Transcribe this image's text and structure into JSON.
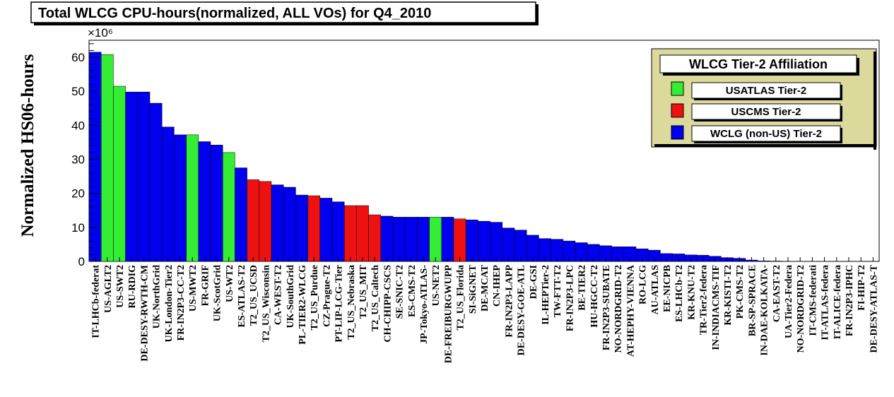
{
  "colors": {
    "usatlas": "#33ee33",
    "uscms": "#ee1111",
    "wlcg": "#0000ee",
    "legend_bg": "#dcd99d"
  },
  "chart_data": {
    "type": "bar",
    "title": "Total WLCG CPU-hours(normalized, ALL VOs) for Q4_2010",
    "ylabel": "Normalized HS06-hours",
    "xlabel": "",
    "y_multiplier": "×10⁶",
    "ylim": [
      0,
      65
    ],
    "yticks": [
      0,
      10,
      20,
      30,
      40,
      50,
      60
    ],
    "grid": false,
    "legend_placement": "top-right",
    "legend": {
      "title": "WLCG Tier-2 Affiliation",
      "entries": [
        {
          "group": "usatlas",
          "label": "USATLAS Tier-2"
        },
        {
          "group": "uscms",
          "label": "USCMS Tier-2"
        },
        {
          "group": "wlcg",
          "label": "WCLG (non-US) Tier-2"
        }
      ]
    },
    "categories": [
      "IT-LHCb-federat",
      "US-AGLT2",
      "US-SWT2",
      "RU-RDIG",
      "DE-DESY-RWTH-CM",
      "UK-NorthGrid",
      "UK-London-Tier2",
      "FR-IN2P3-CC-T2",
      "US-MWT2",
      "FR-GRIF",
      "UK-ScotGrid",
      "US-WT2",
      "ES-ATLAS-T2",
      "T2_US_UCSD",
      "T2_US_Wisconsin",
      "CA-WEST-T2",
      "UK-SouthGrid",
      "PL-TIER2-WLCG",
      "T2_US_Purdue",
      "CZ-Prague-T2",
      "PT-LIP-LCG-Tier",
      "T2_US_Nebraska",
      "T2_US_MIT",
      "T2_US_Caltech",
      "CH-CHIPP-CSCS",
      "SE-SNIC-T2",
      "ES-CMS-T2",
      "JP-Tokyo-ATLAS-",
      "US-NET2",
      "DE-FREIBURGWUPP",
      "T2_US_Florida",
      "SI-SiGNET",
      "DE-MCAT",
      "CN-IHEP",
      "FR-IN2P3-LAPP",
      "DE-DESY-GOE-ATL",
      "DE-GSI",
      "IL-HEPTier-2",
      "TW-FTT-T2",
      "FR-IN2P3-LPC",
      "BE-TIER2",
      "HU-HGCC-T2",
      "FR-IN2P3-SUBATE",
      "NO-NORDGRID-T2",
      "AT-HEPHY-VIENNA",
      "RO-LCG",
      "AU-ATLAS",
      "EE-NICPB",
      "ES-LHCb-T2",
      "KR-KNU-T2",
      "TR-Tier2-federa",
      "IN-INDIACMS-TIF",
      "KR-KISTI-T2",
      "PK-CMS-T2",
      "BR-SP-SPRACE",
      "IN-DAE-KOLKATA-",
      "CA-EAST-T2",
      "UA-Tier2-Federa",
      "NO-NORDGRID-T2",
      "IT-CMS-federati",
      "IT-ATLAS-federa",
      "IT-ALICE-federa",
      "FR-IN2P3-IPHC",
      "FI-HIP-T2",
      "DE-DESY-ATLAS-T"
    ],
    "values": [
      61.5,
      60.8,
      51.5,
      49.8,
      49.8,
      46.5,
      39.5,
      37.2,
      37.2,
      35.2,
      34.2,
      32.0,
      27.5,
      24.0,
      23.5,
      22.5,
      21.8,
      19.5,
      19.3,
      18.6,
      17.5,
      16.4,
      16.4,
      13.7,
      13.3,
      13.0,
      13.0,
      13.0,
      13.0,
      13.0,
      12.5,
      12.2,
      11.8,
      11.5,
      9.8,
      9.2,
      7.7,
      6.7,
      6.5,
      6.0,
      5.5,
      5.0,
      4.6,
      4.3,
      4.3,
      3.7,
      3.3,
      2.3,
      2.2,
      1.9,
      1.8,
      1.5,
      1.1,
      0.9,
      0.4,
      0.15,
      0.1,
      0.05,
      0.05,
      0.05,
      0.05,
      0.05,
      0.05,
      0.05,
      0.05
    ],
    "groups": [
      "wlcg",
      "usatlas",
      "usatlas",
      "wlcg",
      "wlcg",
      "wlcg",
      "wlcg",
      "wlcg",
      "usatlas",
      "wlcg",
      "wlcg",
      "usatlas",
      "wlcg",
      "uscms",
      "uscms",
      "wlcg",
      "wlcg",
      "wlcg",
      "uscms",
      "wlcg",
      "wlcg",
      "uscms",
      "uscms",
      "uscms",
      "wlcg",
      "wlcg",
      "wlcg",
      "wlcg",
      "usatlas",
      "wlcg",
      "uscms",
      "wlcg",
      "wlcg",
      "wlcg",
      "wlcg",
      "wlcg",
      "wlcg",
      "wlcg",
      "wlcg",
      "wlcg",
      "wlcg",
      "wlcg",
      "wlcg",
      "wlcg",
      "wlcg",
      "wlcg",
      "wlcg",
      "wlcg",
      "wlcg",
      "wlcg",
      "wlcg",
      "wlcg",
      "wlcg",
      "wlcg",
      "wlcg",
      "wlcg",
      "wlcg",
      "wlcg",
      "wlcg",
      "wlcg",
      "wlcg",
      "wlcg",
      "wlcg",
      "wlcg",
      "wlcg"
    ]
  }
}
